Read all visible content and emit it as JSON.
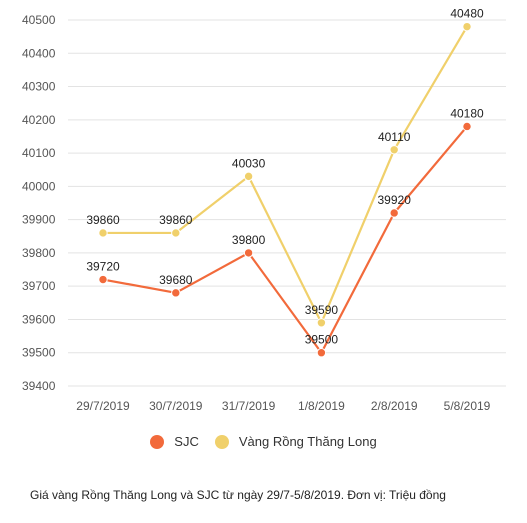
{
  "chart_data": {
    "type": "line",
    "categories": [
      "29/7/2019",
      "30/7/2019",
      "31/7/2019",
      "1/8/2019",
      "2/8/2019",
      "5/8/2019"
    ],
    "series": [
      {
        "name": "SJC",
        "values": [
          39720,
          39680,
          39800,
          39500,
          39920,
          40180
        ],
        "color": "#f26a3b"
      },
      {
        "name": "Vàng Rồng Thăng Long",
        "values": [
          39860,
          39860,
          40030,
          39590,
          40110,
          40480
        ],
        "color": "#f0d06b"
      }
    ],
    "ylim": [
      39400,
      40500
    ],
    "yticks": [
      39400,
      39500,
      39600,
      39700,
      39800,
      39900,
      40000,
      40100,
      40200,
      40300,
      40400,
      40500
    ],
    "grid": true,
    "legend_position": "bottom",
    "title": "",
    "xlabel": "",
    "ylabel": ""
  },
  "legend": {
    "items": [
      {
        "label": "SJC",
        "color": "#f26a3b"
      },
      {
        "label": "Vàng Rồng Thăng Long",
        "color": "#f0d06b"
      }
    ]
  },
  "caption": "Giá vàng Rồng Thăng Long và SJC từ ngày 29/7-5/8/2019. Đơn vị: Triệu đồng"
}
